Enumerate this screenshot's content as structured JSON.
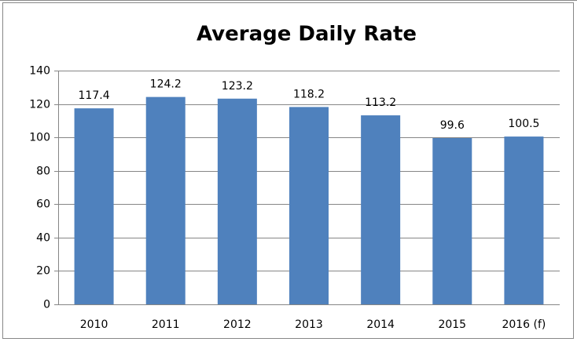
{
  "chart_data": {
    "type": "bar",
    "title": "Average Daily Rate",
    "categories": [
      "2010",
      "2011",
      "2012",
      "2013",
      "2014",
      "2015",
      "2016 (f)"
    ],
    "values": [
      117.4,
      124.2,
      123.2,
      118.2,
      113.2,
      99.6,
      100.5
    ],
    "color": "#4f81bd",
    "ylim": [
      0,
      140
    ],
    "yticks": [
      0,
      20,
      40,
      60,
      80,
      100,
      120,
      140
    ],
    "grid": true
  }
}
